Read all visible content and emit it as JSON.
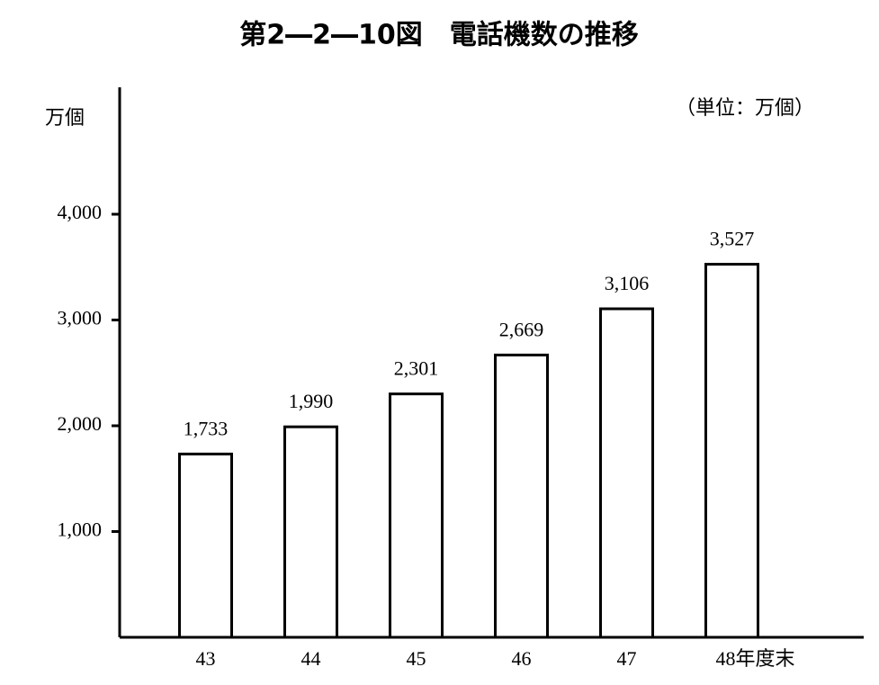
{
  "chart_data": {
    "type": "bar",
    "title": "第2―2―10図　電話機数の推移",
    "y_axis_label": "万個",
    "unit_note": "（単位：万個）",
    "categories": [
      "43",
      "44",
      "45",
      "46",
      "47",
      "48年度末"
    ],
    "values": [
      1733,
      1990,
      2301,
      2669,
      3106,
      3527
    ],
    "value_labels": [
      "1,733",
      "1,990",
      "2,301",
      "2,669",
      "3,106",
      "3,527"
    ],
    "color": "#ffffff",
    "ylim": [
      0,
      5200
    ],
    "yticks": [
      {
        "value": 1000,
        "label": "1,000"
      },
      {
        "value": 2000,
        "label": "2,000"
      },
      {
        "value": 3000,
        "label": "3,000"
      },
      {
        "value": 4000,
        "label": "4,000"
      }
    ],
    "grid": false
  }
}
